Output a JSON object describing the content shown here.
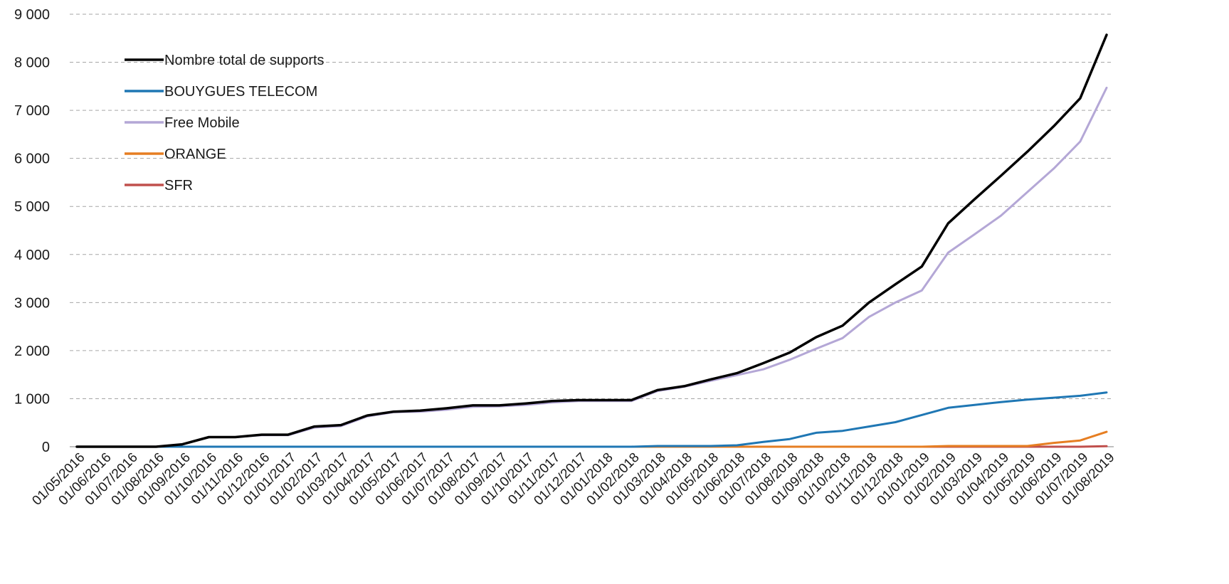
{
  "chart_data": {
    "type": "line",
    "title": "",
    "xlabel": "",
    "ylabel": "",
    "ylim": [
      0,
      9000
    ],
    "yticks": [
      0,
      1000,
      2000,
      3000,
      4000,
      5000,
      6000,
      7000,
      8000,
      9000
    ],
    "ytick_labels": [
      "0",
      "1 000",
      "2 000",
      "3 000",
      "4 000",
      "5 000",
      "6 000",
      "7 000",
      "8 000",
      "9 000"
    ],
    "grid": "horizontal dashed",
    "legend_position": "top-left",
    "categories": [
      "01/05/2016",
      "01/06/2016",
      "01/07/2016",
      "01/08/2016",
      "01/09/2016",
      "01/10/2016",
      "01/11/2016",
      "01/12/2016",
      "01/01/2017",
      "01/02/2017",
      "01/03/2017",
      "01/04/2017",
      "01/05/2017",
      "01/06/2017",
      "01/07/2017",
      "01/08/2017",
      "01/09/2017",
      "01/10/2017",
      "01/11/2017",
      "01/12/2017",
      "01/01/2018",
      "01/02/2018",
      "01/03/2018",
      "01/04/2018",
      "01/05/2018",
      "01/06/2018",
      "01/07/2018",
      "01/08/2018",
      "01/09/2018",
      "01/10/2018",
      "01/11/2018",
      "01/12/2018",
      "01/01/2019",
      "01/02/2019",
      "01/03/2019",
      "01/04/2019",
      "01/05/2019",
      "01/06/2019",
      "01/07/2019",
      "01/08/2019"
    ],
    "series": [
      {
        "name": "Nombre total de supports",
        "color": "#000000",
        "values": [
          0,
          0,
          0,
          0,
          50,
          200,
          200,
          250,
          250,
          420,
          450,
          650,
          730,
          750,
          800,
          860,
          860,
          900,
          950,
          970,
          970,
          970,
          1180,
          1260,
          1400,
          1530,
          1740,
          1960,
          2280,
          2520,
          3000,
          3380,
          3750,
          4650,
          5150,
          5640,
          6140,
          6670,
          7250,
          8570
        ]
      },
      {
        "name": "BOUYGUES TELECOM",
        "color": "#1f77b4",
        "values": [
          0,
          0,
          0,
          0,
          0,
          0,
          0,
          0,
          0,
          0,
          0,
          0,
          0,
          0,
          0,
          0,
          0,
          0,
          0,
          0,
          0,
          0,
          15,
          15,
          15,
          30,
          100,
          160,
          290,
          330,
          420,
          510,
          660,
          810,
          870,
          930,
          980,
          1020,
          1060,
          1130
        ]
      },
      {
        "name": "Free Mobile",
        "color": "#b4a7d6",
        "values": [
          0,
          0,
          0,
          0,
          50,
          200,
          200,
          240,
          240,
          400,
          430,
          630,
          720,
          730,
          770,
          830,
          840,
          870,
          920,
          950,
          950,
          950,
          1160,
          1250,
          1370,
          1490,
          1610,
          1810,
          2040,
          2260,
          2700,
          3000,
          3250,
          4040,
          4420,
          4810,
          5300,
          5790,
          6350,
          7470
        ]
      },
      {
        "name": "ORANGE",
        "color": "#e67e22",
        "values": [
          0,
          0,
          0,
          0,
          0,
          0,
          0,
          0,
          0,
          0,
          0,
          0,
          0,
          0,
          0,
          0,
          0,
          0,
          0,
          0,
          0,
          0,
          0,
          0,
          0,
          0,
          0,
          0,
          0,
          0,
          0,
          0,
          0,
          15,
          15,
          15,
          15,
          80,
          130,
          310
        ]
      },
      {
        "name": "SFR",
        "color": "#c0504d",
        "values": [
          0,
          0,
          0,
          0,
          0,
          0,
          0,
          0,
          0,
          0,
          0,
          0,
          0,
          0,
          0,
          0,
          0,
          0,
          0,
          0,
          0,
          0,
          0,
          0,
          0,
          0,
          0,
          0,
          0,
          0,
          0,
          0,
          0,
          0,
          0,
          0,
          0,
          0,
          0,
          10
        ]
      }
    ]
  }
}
